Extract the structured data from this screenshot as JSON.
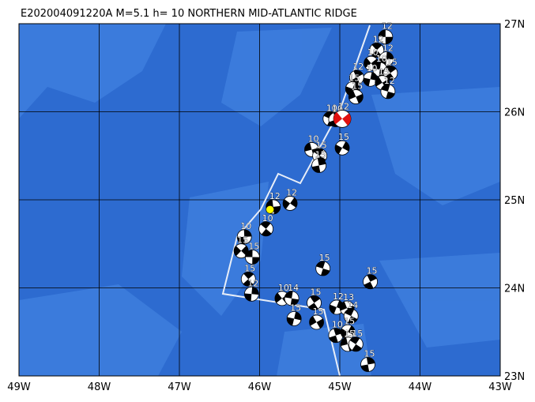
{
  "map": {
    "title": "E202004091220A  M=5.1  h= 10  NORTHERN MID-ATLANTIC RIDGE",
    "xlim": [
      -49,
      -43
    ],
    "ylim": [
      23,
      27
    ],
    "xticks": [
      {
        "value": -49,
        "label": "49W"
      },
      {
        "value": -48,
        "label": "48W"
      },
      {
        "value": -47,
        "label": "47W"
      },
      {
        "value": -46,
        "label": "46W"
      },
      {
        "value": -45,
        "label": "45W"
      },
      {
        "value": -44,
        "label": "44W"
      },
      {
        "value": -43,
        "label": "43W"
      }
    ],
    "yticks": [
      {
        "value": 23,
        "label": "23N"
      },
      {
        "value": 24,
        "label": "24N"
      },
      {
        "value": 25,
        "label": "25N"
      },
      {
        "value": 26,
        "label": "26N"
      },
      {
        "value": 27,
        "label": "27N"
      }
    ],
    "event_color": "#000000",
    "main_event_color": "#e01010",
    "epicenter_color": "#ffff00",
    "epicenter": {
      "lon": -45.87,
      "lat": 24.89
    },
    "main_event": {
      "lon": -44.97,
      "lat": 25.92,
      "depth": 12
    },
    "events": [
      {
        "lon": -44.43,
        "lat": 26.85,
        "depth": 12
      },
      {
        "lon": -44.54,
        "lat": 26.7,
        "depth": 12
      },
      {
        "lon": -44.42,
        "lat": 26.6,
        "depth": 12
      },
      {
        "lon": -44.61,
        "lat": 26.55,
        "depth": 10
      },
      {
        "lon": -44.5,
        "lat": 26.48,
        "depth": 10
      },
      {
        "lon": -44.37,
        "lat": 26.44,
        "depth": 15
      },
      {
        "lon": -44.62,
        "lat": 26.37,
        "depth": 10
      },
      {
        "lon": -44.47,
        "lat": 26.33,
        "depth": 15
      },
      {
        "lon": -44.4,
        "lat": 26.23,
        "depth": 12
      },
      {
        "lon": -44.79,
        "lat": 26.39,
        "depth": 12
      },
      {
        "lon": -44.84,
        "lat": 26.26,
        "depth": 15
      },
      {
        "lon": -44.8,
        "lat": 26.17,
        "depth": 15
      },
      {
        "lon": -45.12,
        "lat": 25.92,
        "depth": 10
      },
      {
        "lon": -45.05,
        "lat": 25.91,
        "depth": 10
      },
      {
        "lon": -44.97,
        "lat": 25.59,
        "depth": 15
      },
      {
        "lon": -45.35,
        "lat": 25.57,
        "depth": 10
      },
      {
        "lon": -45.25,
        "lat": 25.5,
        "depth": 15
      },
      {
        "lon": -45.26,
        "lat": 25.39,
        "depth": 15
      },
      {
        "lon": -45.62,
        "lat": 24.96,
        "depth": 12
      },
      {
        "lon": -45.83,
        "lat": 24.92,
        "depth": 12
      },
      {
        "lon": -45.92,
        "lat": 24.67,
        "depth": 10
      },
      {
        "lon": -46.19,
        "lat": 24.58,
        "depth": 10
      },
      {
        "lon": -46.23,
        "lat": 24.42,
        "depth": 15
      },
      {
        "lon": -46.09,
        "lat": 24.35,
        "depth": 15
      },
      {
        "lon": -46.14,
        "lat": 24.1,
        "depth": 15
      },
      {
        "lon": -46.1,
        "lat": 23.93,
        "depth": 12
      },
      {
        "lon": -45.72,
        "lat": 23.88,
        "depth": 10
      },
      {
        "lon": -45.6,
        "lat": 23.88,
        "depth": 14
      },
      {
        "lon": -45.32,
        "lat": 23.83,
        "depth": 15
      },
      {
        "lon": -45.57,
        "lat": 23.65,
        "depth": 15
      },
      {
        "lon": -45.29,
        "lat": 23.61,
        "depth": 15
      },
      {
        "lon": -45.21,
        "lat": 24.22,
        "depth": 15
      },
      {
        "lon": -44.62,
        "lat": 24.07,
        "depth": 15
      },
      {
        "lon": -45.04,
        "lat": 23.78,
        "depth": 12
      },
      {
        "lon": -44.91,
        "lat": 23.77,
        "depth": 13
      },
      {
        "lon": -44.86,
        "lat": 23.68,
        "depth": 14
      },
      {
        "lon": -45.05,
        "lat": 23.46,
        "depth": 10
      },
      {
        "lon": -44.9,
        "lat": 23.5,
        "depth": 15
      },
      {
        "lon": -44.9,
        "lat": 23.36,
        "depth": 15
      },
      {
        "lon": -44.8,
        "lat": 23.36,
        "depth": 15
      },
      {
        "lon": -44.65,
        "lat": 23.13,
        "depth": 15
      }
    ]
  }
}
